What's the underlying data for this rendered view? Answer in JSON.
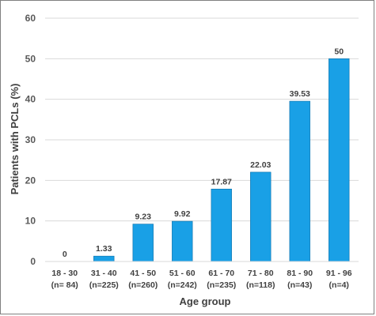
{
  "chart_data": {
    "type": "bar",
    "title": "",
    "xlabel": "Age group",
    "ylabel": "Patients with PCLs (%)",
    "ylim": [
      0,
      60
    ],
    "yticks": [
      0,
      10,
      20,
      30,
      40,
      50,
      60
    ],
    "grid": true,
    "bar_color": "#19A0E6",
    "categories": [
      {
        "range": "18 - 30",
        "n": "(n= 84)"
      },
      {
        "range": "31 - 40",
        "n": "(n=225)"
      },
      {
        "range": "41 - 50",
        "n": "(n=260)"
      },
      {
        "range": "51 - 60",
        "n": "(n=242)"
      },
      {
        "range": "61 - 70",
        "n": "(n=235)"
      },
      {
        "range": "71 - 80",
        "n": "(n=118)"
      },
      {
        "range": "81 - 90",
        "n": "(n=43)"
      },
      {
        "range": "91 - 96",
        "n": "(n=4)"
      }
    ],
    "values": [
      0,
      1.33,
      9.23,
      9.92,
      17.87,
      22.03,
      39.53,
      50
    ],
    "value_labels": [
      "0",
      "1.33",
      "9.23",
      "9.92",
      "17.87",
      "22.03",
      "39.53",
      "50"
    ]
  }
}
